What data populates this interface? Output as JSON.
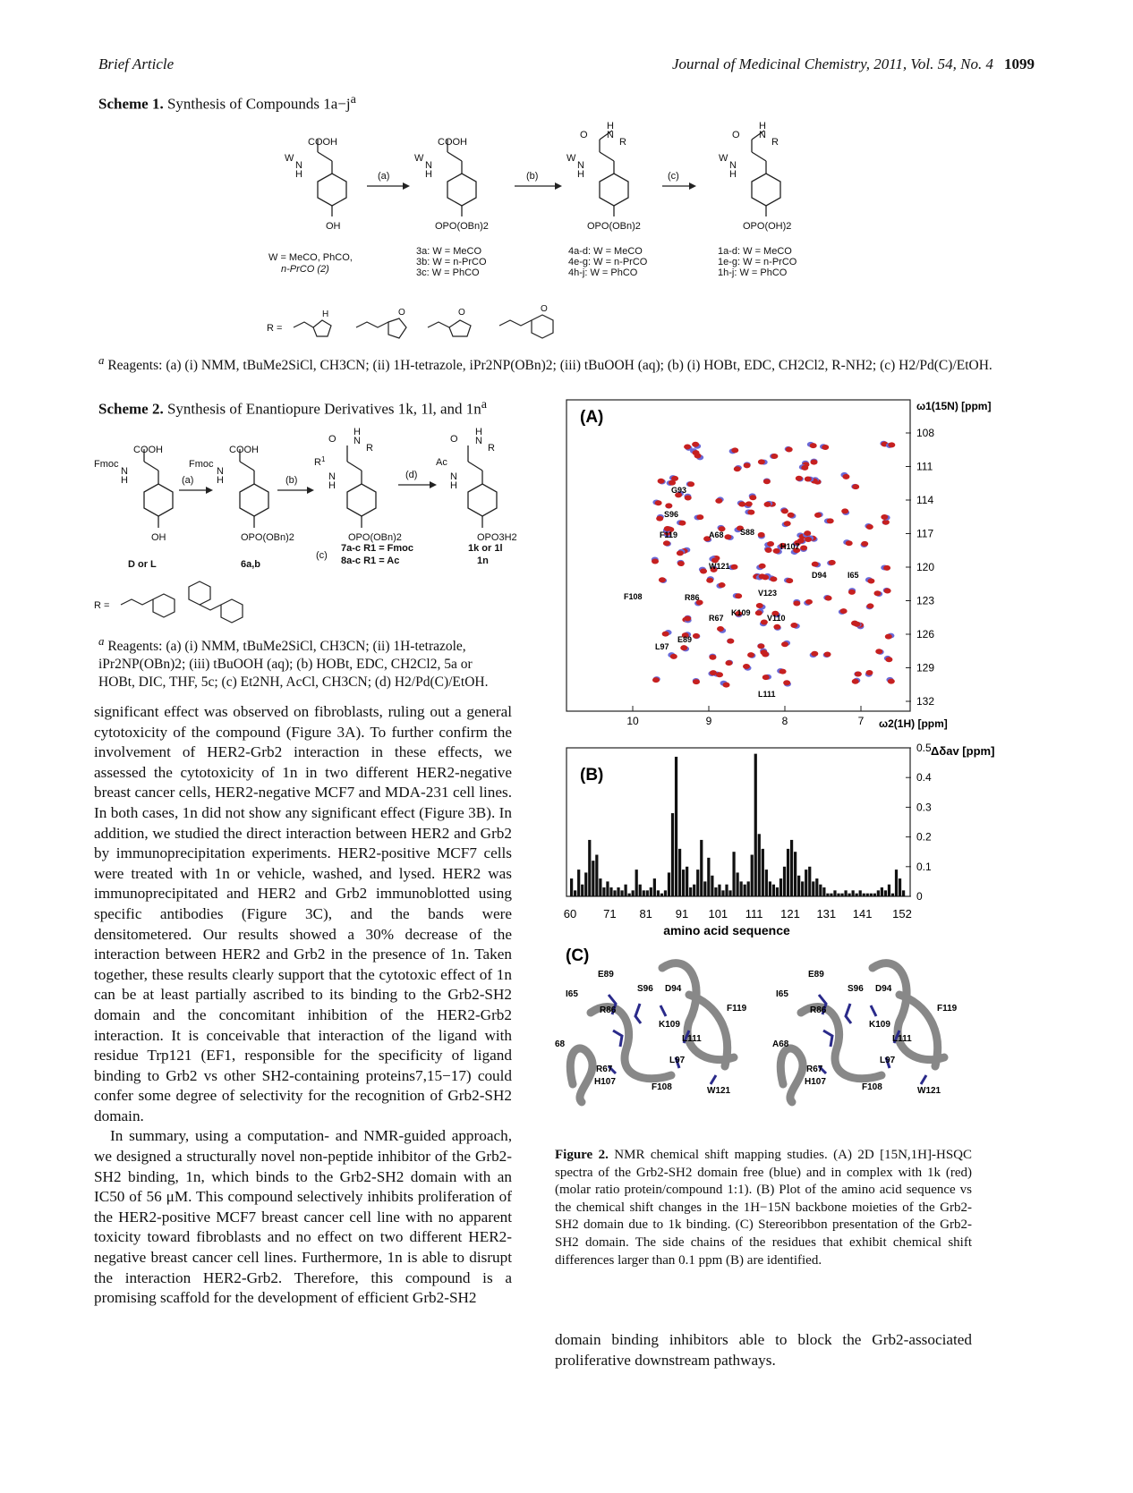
{
  "header": {
    "left": "Brief Article",
    "right": "Journal of Medicinal Chemistry, 2011, Vol. 54, No. 4",
    "page": "1099"
  },
  "scheme1": {
    "label": "Scheme 1.",
    "title": "Synthesis of Compounds 1a−j",
    "start_w": "W = MeCO, PhCO,",
    "start_w2": "n-PrCO (2)",
    "step_a": "(a)",
    "step_b": "(b)",
    "step_c": "(c)",
    "c3": [
      "3a: W = MeCO",
      "3b: W = n-PrCO",
      "3c: W = PhCO"
    ],
    "c4": [
      "4a-d: W = MeCO",
      "4e-g: W = n-PrCO",
      "4h-j: W = PhCO"
    ],
    "c1": [
      "1a-d: W = MeCO",
      "1e-g: W = n-PrCO",
      "1h-j: W = PhCO"
    ],
    "oh": "OH",
    "opobn": "OPO(OBn)2",
    "opooh": "OPO(OH)2",
    "r_label": "R =",
    "footnote": "Reagents: (a) (i) NMM, tBuMe2SiCl, CH3CN; (ii) 1H-tetrazole, iPr2NP(OBn)2; (iii) tBuOOH (aq); (b) (i) HOBt, EDC, CH2Cl2, R-NH2; (c) H2/Pd(C)/EtOH."
  },
  "scheme2": {
    "label": "Scheme 2.",
    "title": "Synthesis of Enantiopure Derivatives 1k, 1l, and 1n",
    "d_or_l": "D or L",
    "c6": "6a,b",
    "c7": "7a-c R1 = Fmoc",
    "c8": "8a-c R1 = Ac",
    "c1k": "1k or 1l",
    "c1n": "1n",
    "footnote": "Reagents: (a) (i) NMM, tBuMe2SiCl, CH3CN; (ii) 1H-tetrazole, iPr2NP(OBn)2; (iii) tBuOOH (aq); (b) HOBt, EDC, CH2Cl2, 5a or HOBt, DIC, THF, 5c; (c) Et2NH, AcCl, CH3CN; (d) H2/Pd(C)/EtOH."
  },
  "body": {
    "p1": "significant effect was observed on fibroblasts, ruling out a general cytotoxicity of the compound (Figure 3A). To further confirm the involvement of HER2-Grb2 interaction in these effects, we assessed the cytotoxicity of 1n in two different HER2-negative breast cancer cells, HER2-negative MCF7 and MDA-231 cell lines. In both cases, 1n did not show any significant effect (Figure 3B). In addition, we studied the direct interaction between HER2 and Grb2 by immunoprecipitation experiments. HER2-positive MCF7 cells were treated with 1n or vehicle, washed, and lysed. HER2 was immunoprecipitated and HER2 and Grb2 immunoblotted using specific antibodies (Figure 3C), and the bands were densitometered. Our results showed a 30% decrease of the interaction between HER2 and Grb2 in the presence of 1n. Taken together, these results clearly support that the cytotoxic effect of 1n can be at least partially ascribed to its binding to the Grb2-SH2 domain and the concomitant inhibition of the HER2-Grb2 interaction. It is conceivable that interaction of the ligand with residue Trp121 (EF1, responsible for the specificity of ligand binding to Grb2 vs other SH2-containing proteins7,15−17) could confer some degree of selectivity for the recognition of Grb2-SH2 domain.",
    "p2": "In summary, using a computation- and NMR-guided approach, we designed a structurally novel non-peptide inhibitor of the Grb2-SH2 binding, 1n, which binds to the Grb2-SH2 domain with an IC50 of 56 μM. This compound selectively inhibits proliferation of the HER2-positive MCF7 breast cancer cell line with no apparent toxicity toward fibroblasts and no effect on two different HER2- negative breast cancer cell lines. Furthermore, 1n is able to disrupt the interaction HER2-Grb2. Therefore, this compound is a promising scaffold for the development of efficient Grb2-SH2",
    "p3": "domain binding inhibitors able to block the Grb2-associated proliferative downstream pathways."
  },
  "figure2": {
    "panelA": {
      "label": "(A)",
      "yaxis_label": "ω1(15N) [ppm]",
      "xaxis_label": "ω2(1H) [ppm]",
      "y_ticks": [
        "108",
        "111",
        "114",
        "117",
        "120",
        "123",
        "126",
        "129",
        "132"
      ],
      "x_ticks": [
        "10",
        "9",
        "8",
        "7"
      ],
      "peak_labels": [
        "G93",
        "S96",
        "F119",
        "A68",
        "S88",
        "H107",
        "W121",
        "D94",
        "I65",
        "F108",
        "R86",
        "V123",
        "K109",
        "R67",
        "V110",
        "E89",
        "L97",
        "L111"
      ]
    },
    "panelB": {
      "label": "(B)",
      "ylabel": "Δδav [ppm]",
      "xlabel": "amino acid sequence",
      "y_ticks": [
        "0.5",
        "0.4",
        "0.3",
        "0.2",
        "0.1",
        "0"
      ],
      "x_ticks": [
        "60",
        "71",
        "81",
        "91",
        "101",
        "111",
        "121",
        "131",
        "141",
        "152"
      ]
    },
    "panelC": {
      "label": "(C)",
      "residues": [
        "E89",
        "I65",
        "S96",
        "D94",
        "R86",
        "F119",
        "K109",
        "L111",
        "A68",
        "L97",
        "R67",
        "H107",
        "F108",
        "W121"
      ],
      "residues_left_edge": "68"
    },
    "caption_label": "Figure 2.",
    "caption": "NMR chemical shift mapping studies. (A) 2D [15N,1H]-HSQC spectra of the Grb2-SH2 domain free (blue) and in complex with 1k (red) (molar ratio protein/compound 1:1). (B) Plot of the amino acid sequence vs the chemical shift changes in the 1H−15N backbone moieties of the Grb2-SH2 domain due to 1k binding. (C) Stereoribbon presentation of the Grb2-SH2 domain. The side chains of the residues that exhibit chemical shift differences larger than 0.1 ppm (B) are identified."
  },
  "chart_data": {
    "type": "bar",
    "xlabel": "amino acid sequence",
    "ylabel": "Δδav [ppm]",
    "ylim": [
      0,
      0.5
    ],
    "xlim": [
      60,
      152
    ],
    "x": [
      60,
      61,
      62,
      63,
      64,
      65,
      66,
      67,
      68,
      69,
      70,
      71,
      72,
      73,
      74,
      75,
      76,
      77,
      78,
      79,
      80,
      81,
      82,
      83,
      84,
      85,
      86,
      87,
      88,
      89,
      90,
      91,
      92,
      93,
      94,
      95,
      96,
      97,
      98,
      99,
      100,
      101,
      102,
      103,
      104,
      105,
      106,
      107,
      108,
      109,
      110,
      111,
      112,
      113,
      114,
      115,
      116,
      117,
      118,
      119,
      120,
      121,
      122,
      123,
      124,
      125,
      126,
      127,
      128,
      129,
      130,
      131,
      132,
      133,
      134,
      135,
      136,
      137,
      138,
      139,
      140,
      141,
      142,
      143,
      144,
      145,
      146,
      147,
      148,
      149,
      150,
      151,
      152
    ],
    "values": [
      0.06,
      0.02,
      0.09,
      0.04,
      0.08,
      0.19,
      0.12,
      0.14,
      0.06,
      0.03,
      0.05,
      0.03,
      0.02,
      0.03,
      0.02,
      0.04,
      0.01,
      0.02,
      0.09,
      0.04,
      0.02,
      0.02,
      0.03,
      0.06,
      0.02,
      0.01,
      0.02,
      0.08,
      0.28,
      0.47,
      0.16,
      0.09,
      0.1,
      0.03,
      0.04,
      0.09,
      0.19,
      0.05,
      0.13,
      0.07,
      0.03,
      0.04,
      0.02,
      0.04,
      0.02,
      0.15,
      0.08,
      0.05,
      0.04,
      0.05,
      0.14,
      0.48,
      0.21,
      0.16,
      0.09,
      0.05,
      0.04,
      0.03,
      0.06,
      0.1,
      0.16,
      0.19,
      0.15,
      0.07,
      0.05,
      0.09,
      0.1,
      0.05,
      0.06,
      0.04,
      0.03,
      0.01,
      0.01,
      0.02,
      0.01,
      0.01,
      0.02,
      0.01,
      0.02,
      0.01,
      0.02,
      0.01,
      0.01,
      0.01,
      0.01,
      0.02,
      0.03,
      0.02,
      0.04,
      0.01,
      0.09,
      0.06,
      0.02
    ]
  },
  "colors": {
    "ribbon": "#888888",
    "sidechain": "#2a2a8a",
    "peak_red": "#c62020",
    "peak_blue": "#6a6ad8"
  }
}
